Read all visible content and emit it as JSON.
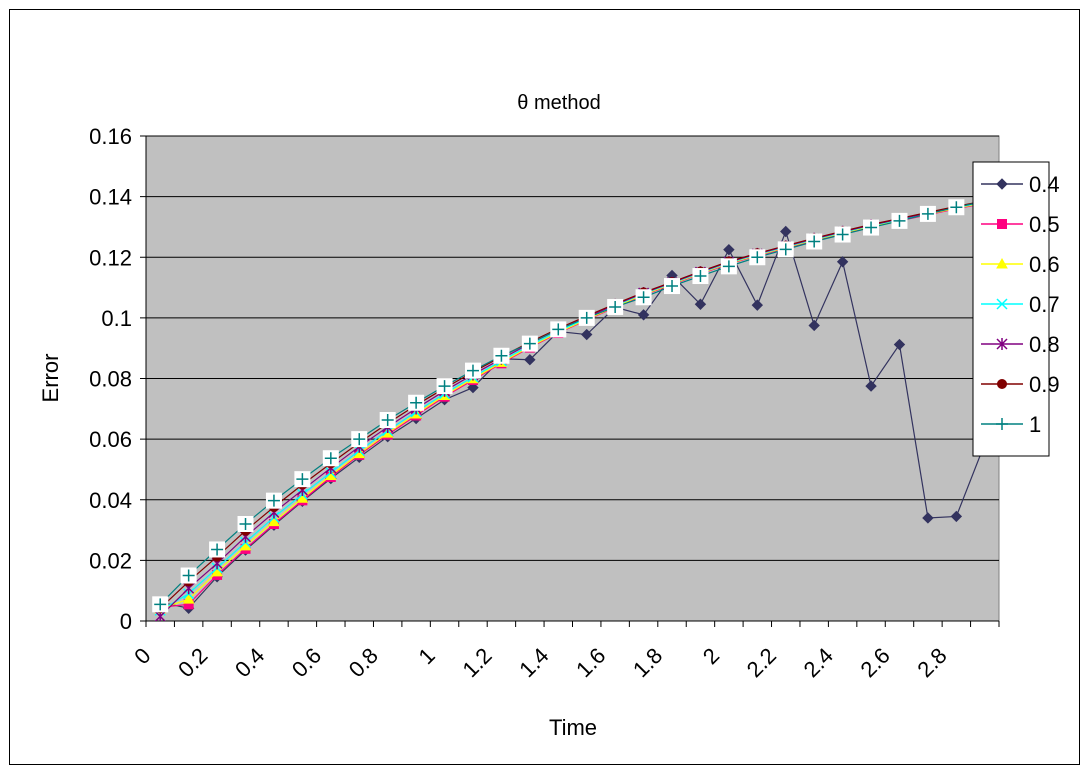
{
  "chart_data": {
    "type": "line",
    "title": "θ method",
    "xlabel": "Time",
    "ylabel": "Error",
    "ylim": [
      0,
      0.16
    ],
    "xlim": [
      0,
      3.0
    ],
    "y_ticks": [
      "0",
      "0.02",
      "0.04",
      "0.06",
      "0.08",
      "0.1",
      "0.12",
      "0.14",
      "0.16"
    ],
    "x_ticks": [
      "0",
      "0.2",
      "0.4",
      "0.6",
      "0.8",
      "1",
      "1.2",
      "1.4",
      "1.6",
      "1.8",
      "2",
      "2.2",
      "2.4",
      "2.6",
      "2.8"
    ],
    "grid": "horizontal",
    "legend_position": "right",
    "plot_background": "#c0c0c0",
    "x": [
      0.05,
      0.15,
      0.25,
      0.35,
      0.45,
      0.55,
      0.65,
      0.75,
      0.85,
      0.95,
      1.05,
      1.15,
      1.25,
      1.35,
      1.45,
      1.55,
      1.65,
      1.75,
      1.85,
      1.95,
      2.05,
      2.15,
      2.25,
      2.35,
      2.45,
      2.55,
      2.65,
      2.75,
      2.85,
      2.95,
      3.05
    ],
    "series": [
      {
        "name": "0.4",
        "color": "#33335f",
        "marker": "diamond",
        "values": [
          0.0062,
          0.0042,
          0.0146,
          0.0234,
          0.0316,
          0.0395,
          0.047,
          0.054,
          0.0608,
          0.0668,
          0.073,
          0.077,
          0.0865,
          0.0862,
          0.0955,
          0.0945,
          0.1035,
          0.101,
          0.114,
          0.1045,
          0.1225,
          0.1042,
          0.1285,
          0.0975,
          0.1185,
          0.0775,
          0.0912,
          0.034,
          0.0345,
          0.0585,
          0.07
        ]
      },
      {
        "name": "0.5",
        "color": "#ff0080",
        "marker": "square",
        "values": [
          0.0045,
          0.0055,
          0.0152,
          0.0238,
          0.032,
          0.0398,
          0.0475,
          0.0548,
          0.0615,
          0.0678,
          0.074,
          0.0795,
          0.085,
          0.0902,
          0.095,
          0.0993,
          0.1035,
          0.1075,
          0.111,
          0.1145,
          0.1178,
          0.1205,
          0.123,
          0.1255,
          0.1278,
          0.13,
          0.132,
          0.134,
          0.136,
          0.1378,
          0.1395
        ]
      },
      {
        "name": "0.6",
        "color": "#ffff00",
        "marker": "triangle",
        "values": [
          0.004,
          0.0072,
          0.0162,
          0.0248,
          0.0328,
          0.0405,
          0.048,
          0.0552,
          0.062,
          0.0683,
          0.0744,
          0.0799,
          0.0853,
          0.0905,
          0.0952,
          0.0995,
          0.1037,
          0.1077,
          0.1112,
          0.1147,
          0.118,
          0.1207,
          0.1232,
          0.1257,
          0.128,
          0.1302,
          0.1322,
          0.1342,
          0.1362,
          0.138,
          0.1397
        ]
      },
      {
        "name": "0.7",
        "color": "#00ffff",
        "marker": "x",
        "values": [
          0.0035,
          0.009,
          0.0175,
          0.026,
          0.0342,
          0.0418,
          0.049,
          0.0562,
          0.0628,
          0.069,
          0.075,
          0.0805,
          0.0858,
          0.0909,
          0.0956,
          0.0998,
          0.104,
          0.108,
          0.1114,
          0.1149,
          0.1182,
          0.1209,
          0.1234,
          0.1259,
          0.1282,
          0.1304,
          0.1324,
          0.1344,
          0.1364,
          0.1382,
          0.1399
        ]
      },
      {
        "name": "0.8",
        "color": "#800080",
        "marker": "star",
        "values": [
          0.0015,
          0.0108,
          0.019,
          0.0278,
          0.0358,
          0.0432,
          0.0505,
          0.0575,
          0.064,
          0.0701,
          0.0759,
          0.0813,
          0.0865,
          0.0915,
          0.0961,
          0.1002,
          0.1043,
          0.1082,
          0.1116,
          0.1151,
          0.1184,
          0.1211,
          0.1236,
          0.1261,
          0.1284,
          0.1306,
          0.1326,
          0.1346,
          0.1366,
          0.1384,
          0.1401
        ]
      },
      {
        "name": "0.9",
        "color": "#800000",
        "marker": "circle",
        "values": [
          0.0042,
          0.013,
          0.0212,
          0.0298,
          0.0376,
          0.045,
          0.052,
          0.0588,
          0.0652,
          0.0712,
          0.0768,
          0.0821,
          0.0872,
          0.092,
          0.0965,
          0.1006,
          0.1046,
          0.1084,
          0.1118,
          0.1153,
          0.1186,
          0.1213,
          0.1238,
          0.1263,
          0.1286,
          0.1308,
          0.1328,
          0.1348,
          0.1368,
          0.1386,
          0.1403
        ]
      },
      {
        "name": "1",
        "color": "#008080",
        "marker": "plus",
        "values": [
          0.0055,
          0.015,
          0.0236,
          0.032,
          0.0397,
          0.0468,
          0.0537,
          0.06,
          0.0663,
          0.072,
          0.0775,
          0.0826,
          0.0875,
          0.0915,
          0.0962,
          0.1,
          0.1036,
          0.1068,
          0.1105,
          0.1138,
          0.117,
          0.12,
          0.1226,
          0.1252,
          0.1275,
          0.1298,
          0.132,
          0.1343,
          0.1365,
          0.1385,
          0.1405
        ]
      }
    ]
  }
}
